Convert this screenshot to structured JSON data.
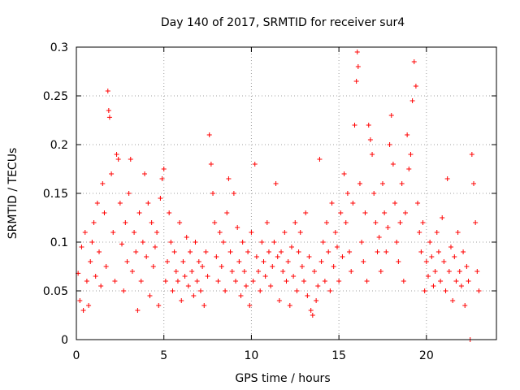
{
  "chart_data": {
    "type": "scatter",
    "title": "Day 140 of 2017, SRMTID for receiver sur4",
    "xlabel": "GPS time / hours",
    "ylabel": "SRMTID / TECUs",
    "xlim": [
      0,
      24
    ],
    "ylim": [
      0,
      0.3
    ],
    "xticks": [
      0,
      5,
      10,
      15,
      20
    ],
    "yticks": [
      0,
      0.05,
      0.1,
      0.15,
      0.2,
      0.25,
      0.3
    ],
    "xtick_labels": [
      "0",
      "5",
      "10",
      "15",
      "20"
    ],
    "ytick_labels": [
      "0",
      "0.05",
      "0.1",
      "0.15",
      "0.2",
      "0.25",
      "0.3"
    ],
    "grid": true,
    "marker": "+",
    "color": "#ff0000",
    "series": [
      {
        "name": "SRMTID",
        "points": [
          [
            0.1,
            0.068
          ],
          [
            0.2,
            0.04
          ],
          [
            0.3,
            0.095
          ],
          [
            0.4,
            0.03
          ],
          [
            0.5,
            0.11
          ],
          [
            0.6,
            0.06
          ],
          [
            0.7,
            0.035
          ],
          [
            0.8,
            0.08
          ],
          [
            0.9,
            0.1
          ],
          [
            1.0,
            0.12
          ],
          [
            1.1,
            0.065
          ],
          [
            1.2,
            0.14
          ],
          [
            1.3,
            0.09
          ],
          [
            1.4,
            0.055
          ],
          [
            1.5,
            0.16
          ],
          [
            1.6,
            0.13
          ],
          [
            1.7,
            0.075
          ],
          [
            1.8,
            0.255
          ],
          [
            1.85,
            0.235
          ],
          [
            1.9,
            0.228
          ],
          [
            2.0,
            0.17
          ],
          [
            2.1,
            0.11
          ],
          [
            2.2,
            0.06
          ],
          [
            2.3,
            0.19
          ],
          [
            2.4,
            0.185
          ],
          [
            2.5,
            0.14
          ],
          [
            2.6,
            0.098
          ],
          [
            2.7,
            0.05
          ],
          [
            2.8,
            0.12
          ],
          [
            2.9,
            0.08
          ],
          [
            3.0,
            0.15
          ],
          [
            3.1,
            0.185
          ],
          [
            3.2,
            0.07
          ],
          [
            3.3,
            0.11
          ],
          [
            3.4,
            0.09
          ],
          [
            3.5,
            0.03
          ],
          [
            3.6,
            0.13
          ],
          [
            3.7,
            0.06
          ],
          [
            3.8,
            0.1
          ],
          [
            3.9,
            0.17
          ],
          [
            4.0,
            0.085
          ],
          [
            4.1,
            0.14
          ],
          [
            4.2,
            0.045
          ],
          [
            4.3,
            0.12
          ],
          [
            4.4,
            0.075
          ],
          [
            4.5,
            0.095
          ],
          [
            4.6,
            0.11
          ],
          [
            4.7,
            0.035
          ],
          [
            4.8,
            0.145
          ],
          [
            4.9,
            0.165
          ],
          [
            5.0,
            0.175
          ],
          [
            5.1,
            0.06
          ],
          [
            5.2,
            0.08
          ],
          [
            5.3,
            0.13
          ],
          [
            5.4,
            0.1
          ],
          [
            5.5,
            0.05
          ],
          [
            5.6,
            0.09
          ],
          [
            5.7,
            0.07
          ],
          [
            5.8,
            0.06
          ],
          [
            5.9,
            0.12
          ],
          [
            6.0,
            0.04
          ],
          [
            6.1,
            0.08
          ],
          [
            6.2,
            0.065
          ],
          [
            6.3,
            0.105
          ],
          [
            6.4,
            0.055
          ],
          [
            6.5,
            0.09
          ],
          [
            6.6,
            0.07
          ],
          [
            6.7,
            0.045
          ],
          [
            6.8,
            0.1
          ],
          [
            6.9,
            0.06
          ],
          [
            7.0,
            0.08
          ],
          [
            7.1,
            0.05
          ],
          [
            7.2,
            0.075
          ],
          [
            7.3,
            0.035
          ],
          [
            7.4,
            0.09
          ],
          [
            7.5,
            0.065
          ],
          [
            7.6,
            0.21
          ],
          [
            7.7,
            0.18
          ],
          [
            7.8,
            0.15
          ],
          [
            7.9,
            0.12
          ],
          [
            8.0,
            0.085
          ],
          [
            8.1,
            0.06
          ],
          [
            8.2,
            0.11
          ],
          [
            8.3,
            0.075
          ],
          [
            8.4,
            0.1
          ],
          [
            8.5,
            0.05
          ],
          [
            8.6,
            0.13
          ],
          [
            8.7,
            0.165
          ],
          [
            8.8,
            0.09
          ],
          [
            8.9,
            0.07
          ],
          [
            9.0,
            0.15
          ],
          [
            9.1,
            0.06
          ],
          [
            9.2,
            0.115
          ],
          [
            9.3,
            0.08
          ],
          [
            9.4,
            0.045
          ],
          [
            9.5,
            0.1
          ],
          [
            9.6,
            0.07
          ],
          [
            9.7,
            0.055
          ],
          [
            9.8,
            0.09
          ],
          [
            9.9,
            0.035
          ],
          [
            10.0,
            0.11
          ],
          [
            10.1,
            0.06
          ],
          [
            10.2,
            0.18
          ],
          [
            10.3,
            0.085
          ],
          [
            10.4,
            0.07
          ],
          [
            10.5,
            0.05
          ],
          [
            10.6,
            0.1
          ],
          [
            10.7,
            0.08
          ],
          [
            10.8,
            0.065
          ],
          [
            10.9,
            0.12
          ],
          [
            11.0,
            0.09
          ],
          [
            11.1,
            0.055
          ],
          [
            11.2,
            0.075
          ],
          [
            11.3,
            0.1
          ],
          [
            11.4,
            0.16
          ],
          [
            11.5,
            0.085
          ],
          [
            11.6,
            0.04
          ],
          [
            11.7,
            0.09
          ],
          [
            11.8,
            0.07
          ],
          [
            11.9,
            0.11
          ],
          [
            12.0,
            0.06
          ],
          [
            12.1,
            0.08
          ],
          [
            12.2,
            0.035
          ],
          [
            12.3,
            0.095
          ],
          [
            12.4,
            0.065
          ],
          [
            12.5,
            0.12
          ],
          [
            12.6,
            0.05
          ],
          [
            12.7,
            0.09
          ],
          [
            12.8,
            0.11
          ],
          [
            12.9,
            0.075
          ],
          [
            13.0,
            0.06
          ],
          [
            13.1,
            0.13
          ],
          [
            13.2,
            0.045
          ],
          [
            13.3,
            0.085
          ],
          [
            13.4,
            0.03
          ],
          [
            13.5,
            0.025
          ],
          [
            13.6,
            0.07
          ],
          [
            13.7,
            0.04
          ],
          [
            13.8,
            0.055
          ],
          [
            13.9,
            0.185
          ],
          [
            14.0,
            0.08
          ],
          [
            14.1,
            0.1
          ],
          [
            14.2,
            0.06
          ],
          [
            14.3,
            0.12
          ],
          [
            14.4,
            0.09
          ],
          [
            14.5,
            0.05
          ],
          [
            14.6,
            0.14
          ],
          [
            14.7,
            0.075
          ],
          [
            14.8,
            0.11
          ],
          [
            14.9,
            0.095
          ],
          [
            15.0,
            0.06
          ],
          [
            15.1,
            0.13
          ],
          [
            15.2,
            0.085
          ],
          [
            15.3,
            0.17
          ],
          [
            15.4,
            0.12
          ],
          [
            15.5,
            0.15
          ],
          [
            15.6,
            0.09
          ],
          [
            15.7,
            0.07
          ],
          [
            15.8,
            0.14
          ],
          [
            15.9,
            0.22
          ],
          [
            16.0,
            0.265
          ],
          [
            16.05,
            0.295
          ],
          [
            16.1,
            0.28
          ],
          [
            16.2,
            0.16
          ],
          [
            16.3,
            0.1
          ],
          [
            16.4,
            0.08
          ],
          [
            16.5,
            0.13
          ],
          [
            16.6,
            0.06
          ],
          [
            16.7,
            0.22
          ],
          [
            16.8,
            0.205
          ],
          [
            16.9,
            0.19
          ],
          [
            17.0,
            0.15
          ],
          [
            17.1,
            0.12
          ],
          [
            17.2,
            0.09
          ],
          [
            17.3,
            0.105
          ],
          [
            17.4,
            0.07
          ],
          [
            17.5,
            0.16
          ],
          [
            17.6,
            0.13
          ],
          [
            17.7,
            0.09
          ],
          [
            17.8,
            0.115
          ],
          [
            17.9,
            0.2
          ],
          [
            18.0,
            0.23
          ],
          [
            18.1,
            0.18
          ],
          [
            18.2,
            0.14
          ],
          [
            18.3,
            0.1
          ],
          [
            18.4,
            0.08
          ],
          [
            18.5,
            0.12
          ],
          [
            18.6,
            0.16
          ],
          [
            18.7,
            0.06
          ],
          [
            18.8,
            0.13
          ],
          [
            18.9,
            0.21
          ],
          [
            19.0,
            0.175
          ],
          [
            19.1,
            0.19
          ],
          [
            19.2,
            0.245
          ],
          [
            19.3,
            0.285
          ],
          [
            19.4,
            0.26
          ],
          [
            19.5,
            0.14
          ],
          [
            19.6,
            0.11
          ],
          [
            19.7,
            0.09
          ],
          [
            19.8,
            0.12
          ],
          [
            19.9,
            0.05
          ],
          [
            20.0,
            0.08
          ],
          [
            20.1,
            0.065
          ],
          [
            20.2,
            0.1
          ],
          [
            20.3,
            0.085
          ],
          [
            20.4,
            0.055
          ],
          [
            20.5,
            0.07
          ],
          [
            20.6,
            0.11
          ],
          [
            20.7,
            0.09
          ],
          [
            20.8,
            0.06
          ],
          [
            20.9,
            0.125
          ],
          [
            21.0,
            0.08
          ],
          [
            21.1,
            0.05
          ],
          [
            21.2,
            0.165
          ],
          [
            21.3,
            0.07
          ],
          [
            21.4,
            0.095
          ],
          [
            21.5,
            0.04
          ],
          [
            21.6,
            0.085
          ],
          [
            21.7,
            0.06
          ],
          [
            21.8,
            0.11
          ],
          [
            21.9,
            0.07
          ],
          [
            22.0,
            0.055
          ],
          [
            22.1,
            0.09
          ],
          [
            22.2,
            0.035
          ],
          [
            22.3,
            0.075
          ],
          [
            22.4,
            0.06
          ],
          [
            22.5,
            0.0
          ],
          [
            22.6,
            0.19
          ],
          [
            22.7,
            0.16
          ],
          [
            22.8,
            0.12
          ],
          [
            22.9,
            0.07
          ],
          [
            23.0,
            0.05
          ]
        ]
      }
    ]
  }
}
